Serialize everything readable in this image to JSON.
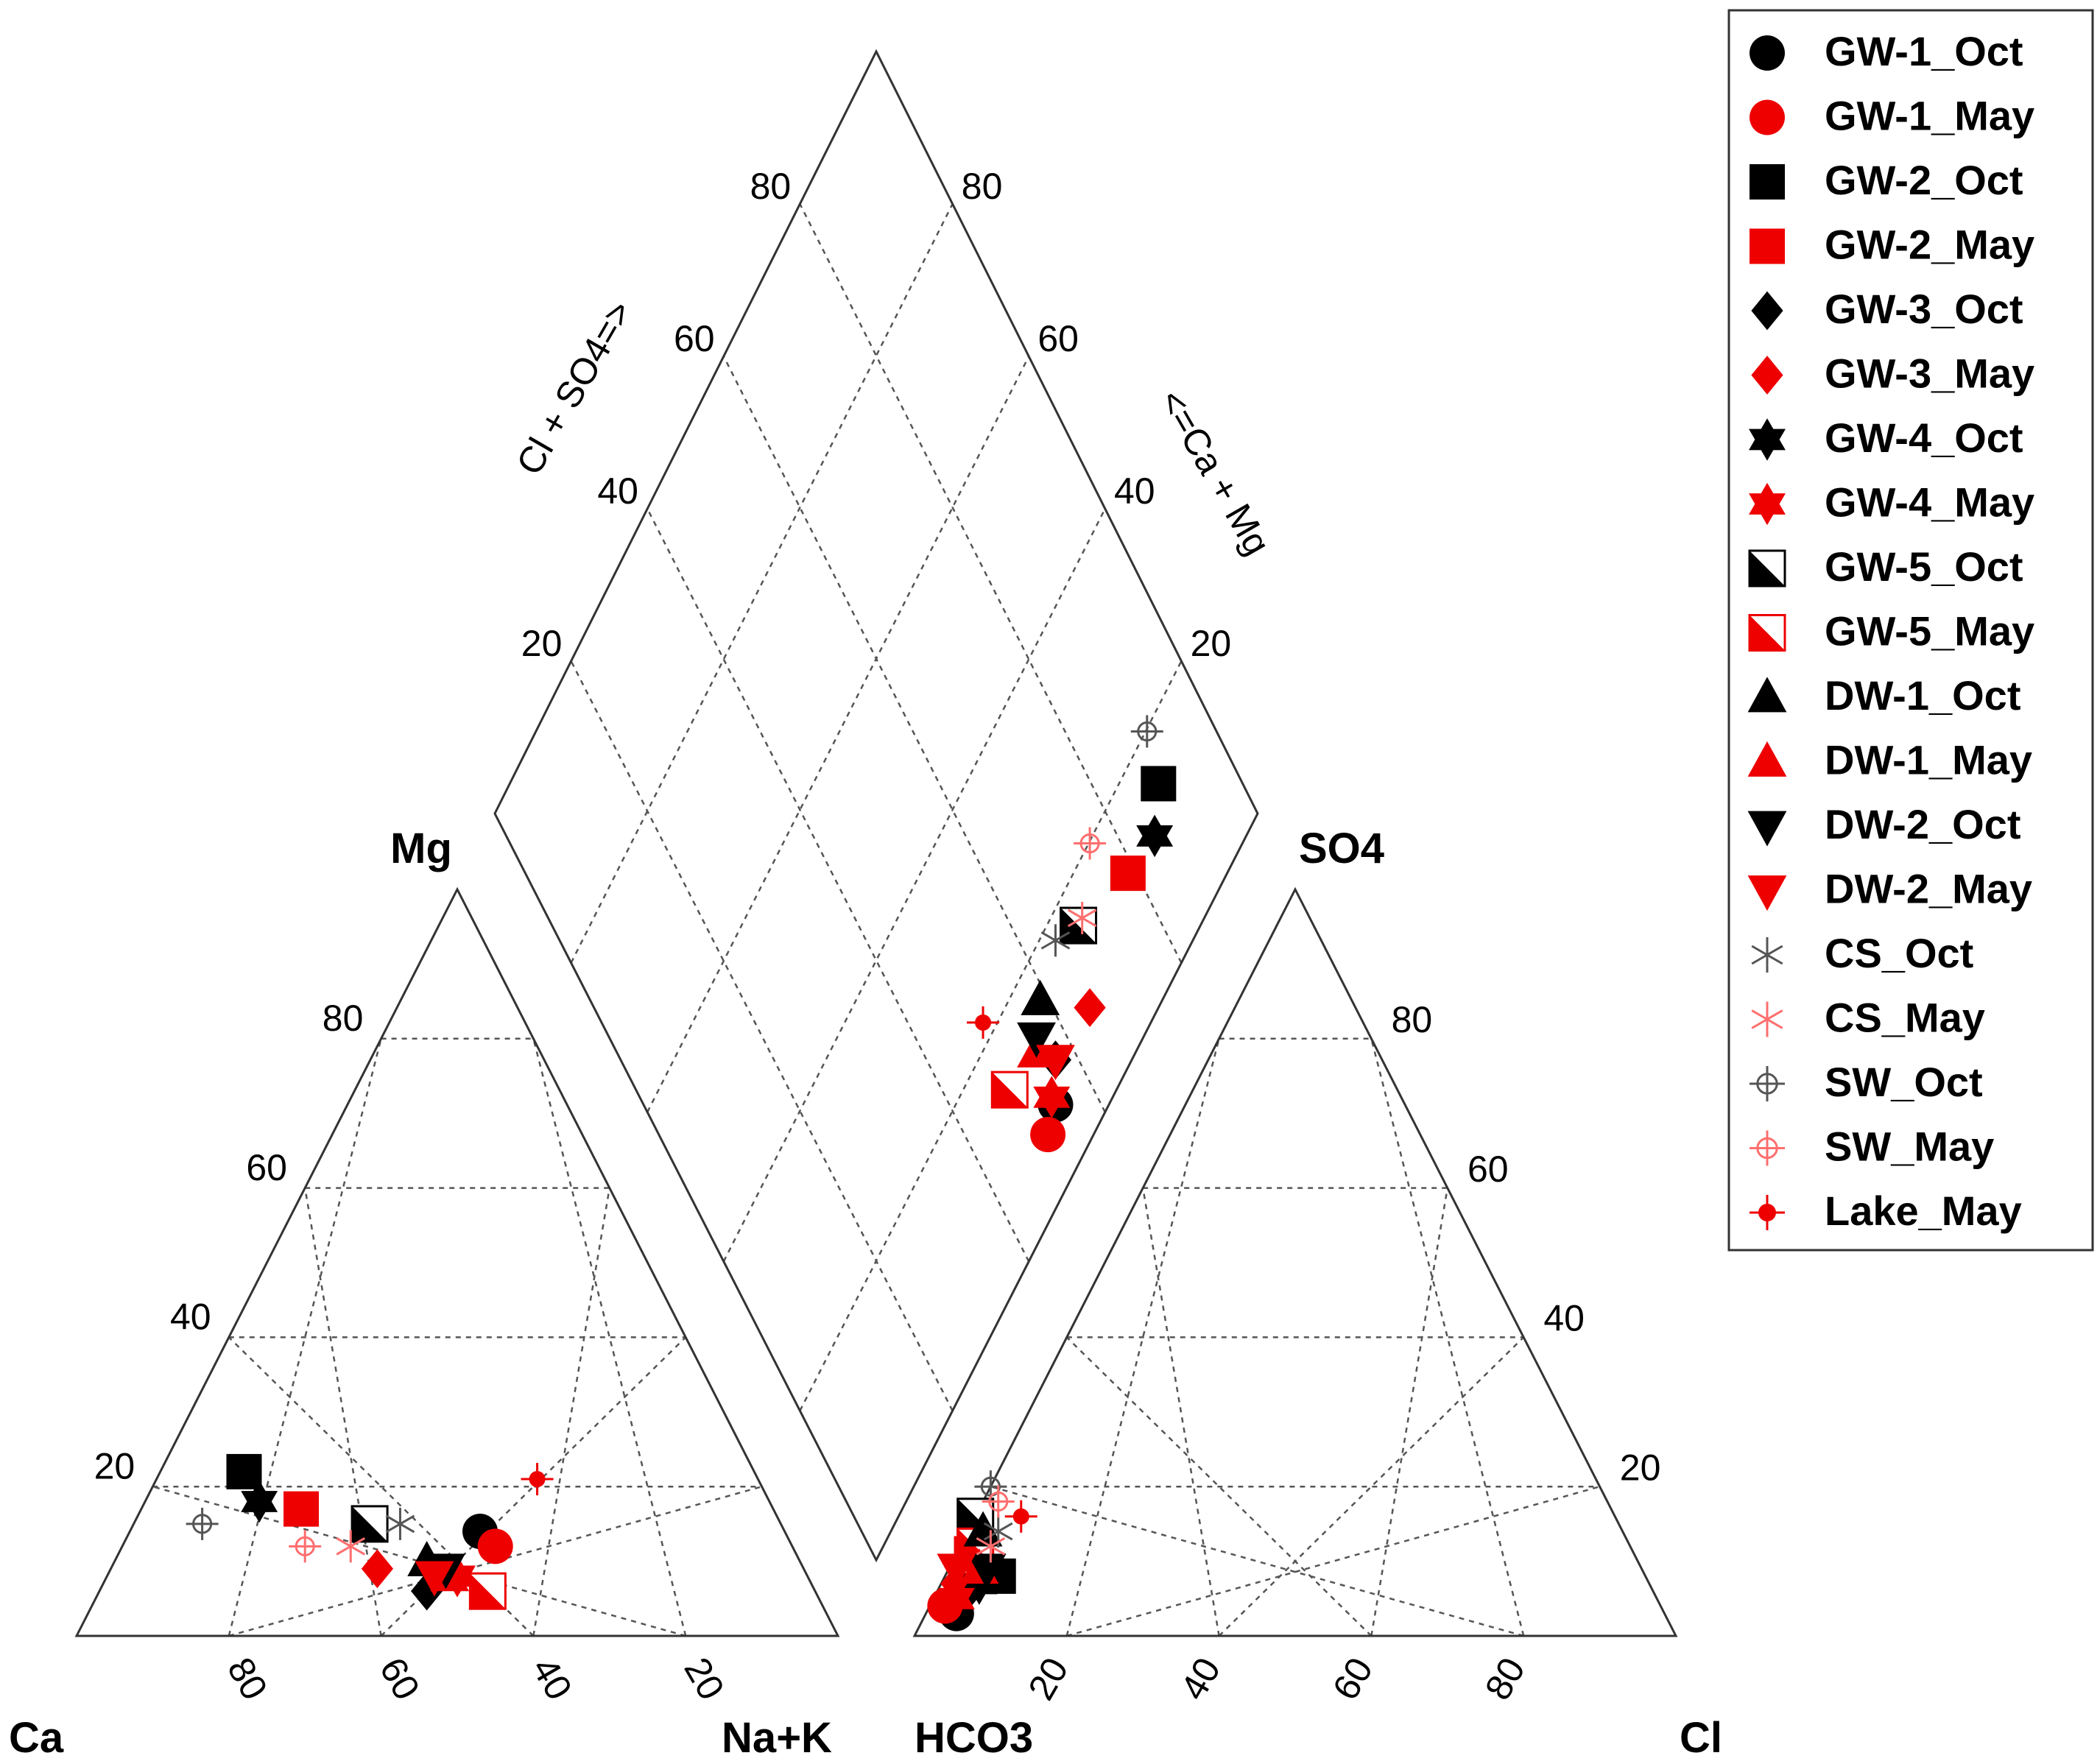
{
  "chart_data": {
    "type": "scatter",
    "subtype": "piper-diagram",
    "title": "",
    "cation_triangle": {
      "corner_labels": {
        "left": "Ca",
        "top": "Mg",
        "right": "Na+K"
      },
      "left_ticks": [
        "20",
        "40",
        "60",
        "80"
      ],
      "bottom_ticks": [
        "80",
        "60",
        "40",
        "20"
      ]
    },
    "anion_triangle": {
      "corner_labels": {
        "left": "HCO3",
        "top": "SO4",
        "right": "Cl"
      },
      "right_ticks": [
        "20",
        "40",
        "60",
        "80"
      ],
      "bottom_ticks": [
        "20",
        "40",
        "60",
        "80"
      ]
    },
    "diamond": {
      "left_axis_label": "Cl + SO4=>",
      "right_axis_label": "<=Ca + Mg",
      "left_ticks": [
        "20",
        "40",
        "60",
        "80"
      ],
      "right_ticks": [
        "20",
        "40",
        "60",
        "80"
      ]
    },
    "colors": {
      "black": "#000000",
      "red": "#ee0000",
      "gray": "#555555",
      "pink": "#ff6e6e"
    },
    "legend_position": "top-right",
    "series": [
      {
        "name": "GW-1_Oct",
        "marker": "circle",
        "color": "#000000",
        "cation": {
          "ca": 40,
          "mg": 14,
          "nak": 46
        },
        "anion": {
          "hco3": 93,
          "so4": 3,
          "cl": 4
        }
      },
      {
        "name": "GW-1_May",
        "marker": "circle",
        "color": "#ee0000",
        "cation": {
          "ca": 39,
          "mg": 12,
          "nak": 49
        },
        "anion": {
          "hco3": 94,
          "so4": 4,
          "cl": 2
        }
      },
      {
        "name": "GW-2_Oct",
        "marker": "square",
        "color": "#000000",
        "cation": {
          "ca": 67,
          "mg": 22,
          "nak": 11
        },
        "anion": {
          "hco3": 85,
          "so4": 8,
          "cl": 7
        }
      },
      {
        "name": "GW-2_May",
        "marker": "square",
        "color": "#ee0000",
        "cation": {
          "ca": 62,
          "mg": 17,
          "nak": 21
        },
        "anion": {
          "hco3": 87,
          "so4": 11,
          "cl": 2
        }
      },
      {
        "name": "GW-3_Oct",
        "marker": "diamond",
        "color": "#000000",
        "cation": {
          "ca": 51,
          "mg": 6,
          "nak": 43
        },
        "anion": {
          "hco3": 90,
          "so4": 6,
          "cl": 4
        }
      },
      {
        "name": "GW-3_May",
        "marker": "diamond",
        "color": "#ee0000",
        "cation": {
          "ca": 56,
          "mg": 9,
          "nak": 35
        },
        "anion": {
          "hco3": 91,
          "so4": 7,
          "cl": 2
        }
      },
      {
        "name": "GW-4_Oct",
        "marker": "hexagram",
        "color": "#000000",
        "cation": {
          "ca": 67,
          "mg": 18,
          "nak": 15
        },
        "anion": {
          "hco3": 88,
          "so4": 7,
          "cl": 5
        }
      },
      {
        "name": "GW-4_May",
        "marker": "hexagram",
        "color": "#ee0000",
        "cation": {
          "ca": 46,
          "mg": 8,
          "nak": 46
        },
        "anion": {
          "hco3": 92,
          "so4": 5,
          "cl": 3
        }
      },
      {
        "name": "GW-5_Oct",
        "marker": "half-square",
        "color": "#000000",
        "cation": {
          "ca": 54,
          "mg": 15,
          "nak": 31
        },
        "anion": {
          "hco3": 84,
          "so4": 16,
          "cl": 0
        }
      },
      {
        "name": "GW-5_May",
        "marker": "half-square",
        "color": "#ee0000",
        "cation": {
          "ca": 43,
          "mg": 6,
          "nak": 51
        },
        "anion": {
          "hco3": 86,
          "so4": 12,
          "cl": 2
        }
      },
      {
        "name": "DW-1_Oct",
        "marker": "triangle-up",
        "color": "#000000",
        "cation": {
          "ca": 49,
          "mg": 10,
          "nak": 41
        },
        "anion": {
          "hco3": 84,
          "so4": 14,
          "cl": 2
        }
      },
      {
        "name": "DW-1_May",
        "marker": "triangle-up",
        "color": "#ee0000",
        "cation": {
          "ca": 47,
          "mg": 8,
          "nak": 45
        },
        "anion": {
          "hco3": 87,
          "so4": 9,
          "cl": 4
        }
      },
      {
        "name": "DW-2_Oct",
        "marker": "triangle-down",
        "color": "#000000",
        "cation": {
          "ca": 47,
          "mg": 9,
          "nak": 44
        },
        "anion": {
          "hco3": 86,
          "so4": 9,
          "cl": 5
        }
      },
      {
        "name": "DW-2_May",
        "marker": "triangle-down",
        "color": "#ee0000",
        "cation": {
          "ca": 49,
          "mg": 8,
          "nak": 43
        },
        "anion": {
          "hco3": 90,
          "so4": 9,
          "cl": 1
        }
      },
      {
        "name": "CS_Oct",
        "marker": "asterisk",
        "color": "#555555",
        "cation": {
          "ca": 50,
          "mg": 15,
          "nak": 35
        },
        "anion": {
          "hco3": 82,
          "so4": 14,
          "cl": 4
        }
      },
      {
        "name": "CS_May",
        "marker": "asterisk",
        "color": "#ff6e6e",
        "cation": {
          "ca": 58,
          "mg": 12,
          "nak": 30
        },
        "anion": {
          "hco3": 84,
          "so4": 12,
          "cl": 4
        }
      },
      {
        "name": "SW_Oct",
        "marker": "circle-plus",
        "color": "#555555",
        "cation": {
          "ca": 76,
          "mg": 15,
          "nak": 9
        },
        "anion": {
          "hco3": 80,
          "so4": 20,
          "cl": 0
        }
      },
      {
        "name": "SW_May",
        "marker": "circle-plus",
        "color": "#ff6e6e",
        "cation": {
          "ca": 64,
          "mg": 12,
          "nak": 24
        },
        "anion": {
          "hco3": 80,
          "so4": 18,
          "cl": 2
        }
      },
      {
        "name": "Lake_May",
        "marker": "dot-plus",
        "color": "#ee0000",
        "cation": {
          "ca": 29,
          "mg": 21,
          "nak": 50
        },
        "anion": {
          "hco3": 78,
          "so4": 16,
          "cl": 6
        }
      }
    ]
  }
}
